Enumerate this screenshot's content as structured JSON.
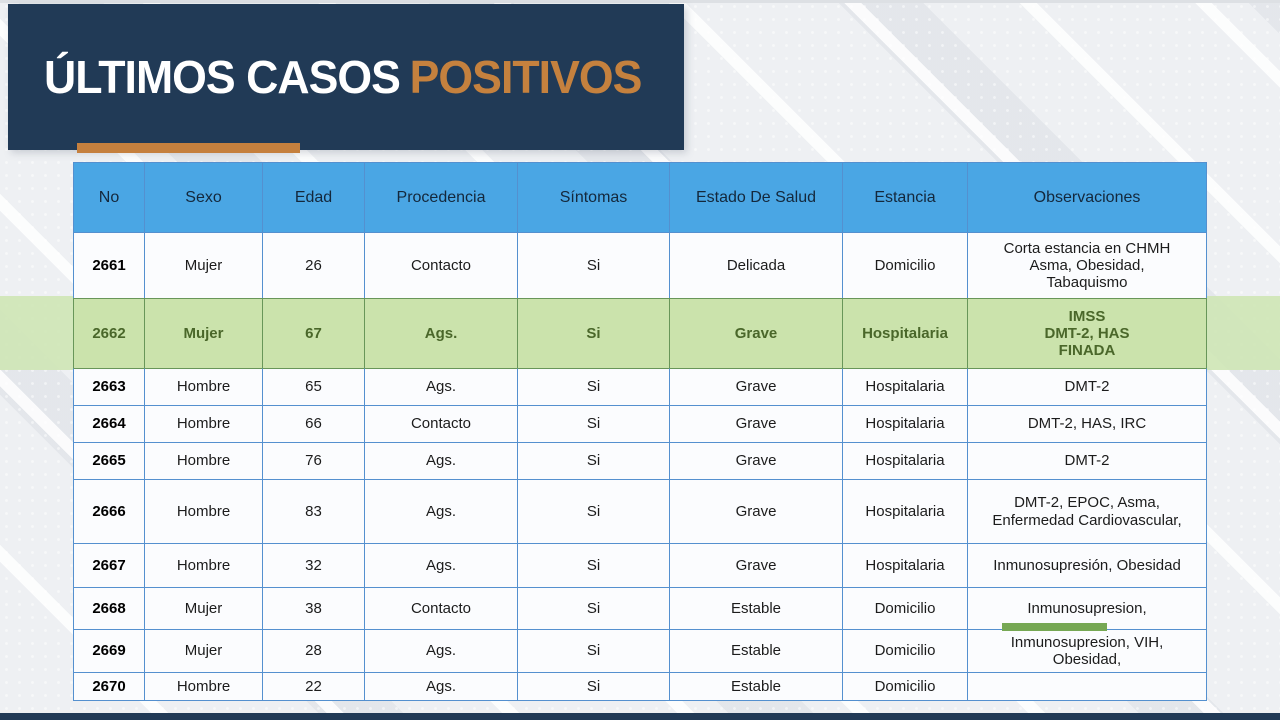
{
  "title": {
    "main": "ÚLTIMOS CASOS",
    "accent": "POSITIVOS"
  },
  "colors": {
    "banner_navy": "#213a56",
    "title_accent_orange": "#c5813e",
    "accent_bar_orange": "#c5803e",
    "table_header_blue": "#4aa6e4",
    "table_border_blue": "#5490cf",
    "highlight_green": "#cbe3ac",
    "highlight_text_green": "#4a672a",
    "marker_bar_green": "#76a854",
    "bottom_bar_navy": "#213a56"
  },
  "table": {
    "column_keys": [
      "no",
      "sexo",
      "edad",
      "procedencia",
      "sintomas",
      "estado_de_salud",
      "estancia",
      "observaciones"
    ],
    "headers": [
      "No",
      "Sexo",
      "Edad",
      "Procedencia",
      "Síntomas",
      "Estado De Salud",
      "Estancia",
      "Observaciones"
    ],
    "rows": [
      {
        "no": "2661",
        "sexo": "Mujer",
        "edad": "26",
        "procedencia": "Contacto",
        "sintomas": "Si",
        "estado_de_salud": "Delicada",
        "estancia": "Domicilio",
        "observaciones": [
          "Corta estancia en CHMH",
          "Asma, Obesidad,",
          "Tabaquismo"
        ],
        "highlight": false,
        "marker": false
      },
      {
        "no": "2662",
        "sexo": "Mujer",
        "edad": "67",
        "procedencia": "Ags.",
        "sintomas": "Si",
        "estado_de_salud": "Grave",
        "estancia": "Hospitalaria",
        "observaciones": [
          "IMSS",
          "DMT-2, HAS",
          "FINADA"
        ],
        "highlight": true,
        "marker": false
      },
      {
        "no": "2663",
        "sexo": "Hombre",
        "edad": "65",
        "procedencia": "Ags.",
        "sintomas": "Si",
        "estado_de_salud": "Grave",
        "estancia": "Hospitalaria",
        "observaciones": "DMT-2",
        "highlight": false,
        "marker": false
      },
      {
        "no": "2664",
        "sexo": "Hombre",
        "edad": "66",
        "procedencia": "Contacto",
        "sintomas": "Si",
        "estado_de_salud": "Grave",
        "estancia": "Hospitalaria",
        "observaciones": "DMT-2, HAS, IRC",
        "highlight": false,
        "marker": false
      },
      {
        "no": "2665",
        "sexo": "Hombre",
        "edad": "76",
        "procedencia": "Ags.",
        "sintomas": "Si",
        "estado_de_salud": "Grave",
        "estancia": "Hospitalaria",
        "observaciones": "DMT-2",
        "highlight": false,
        "marker": false
      },
      {
        "no": "2666",
        "sexo": "Hombre",
        "edad": "83",
        "procedencia": "Ags.",
        "sintomas": "Si",
        "estado_de_salud": "Grave",
        "estancia": "Hospitalaria",
        "observaciones": [
          "DMT-2, EPOC, Asma,",
          "Enfermedad Cardiovascular,"
        ],
        "highlight": false,
        "marker": false
      },
      {
        "no": "2667",
        "sexo": "Hombre",
        "edad": "32",
        "procedencia": "Ags.",
        "sintomas": "Si",
        "estado_de_salud": "Grave",
        "estancia": "Hospitalaria",
        "observaciones": "Inmunosupresión, Obesidad",
        "highlight": false,
        "marker": false
      },
      {
        "no": "2668",
        "sexo": "Mujer",
        "edad": "38",
        "procedencia": "Contacto",
        "sintomas": "Si",
        "estado_de_salud": "Estable",
        "estancia": "Domicilio",
        "observaciones": "Inmunosupresion,",
        "highlight": false,
        "marker": true
      },
      {
        "no": "2669",
        "sexo": "Mujer",
        "edad": "28",
        "procedencia": "Ags.",
        "sintomas": "Si",
        "estado_de_salud": "Estable",
        "estancia": "Domicilio",
        "observaciones": [
          "Inmunosupresion, VIH,",
          "Obesidad,"
        ],
        "highlight": false,
        "marker": false
      },
      {
        "no": "2670",
        "sexo": "Hombre",
        "edad": "22",
        "procedencia": "Ags.",
        "sintomas": "Si",
        "estado_de_salud": "Estable",
        "estancia": "Domicilio",
        "observaciones": "",
        "highlight": false,
        "marker": false
      }
    ]
  }
}
